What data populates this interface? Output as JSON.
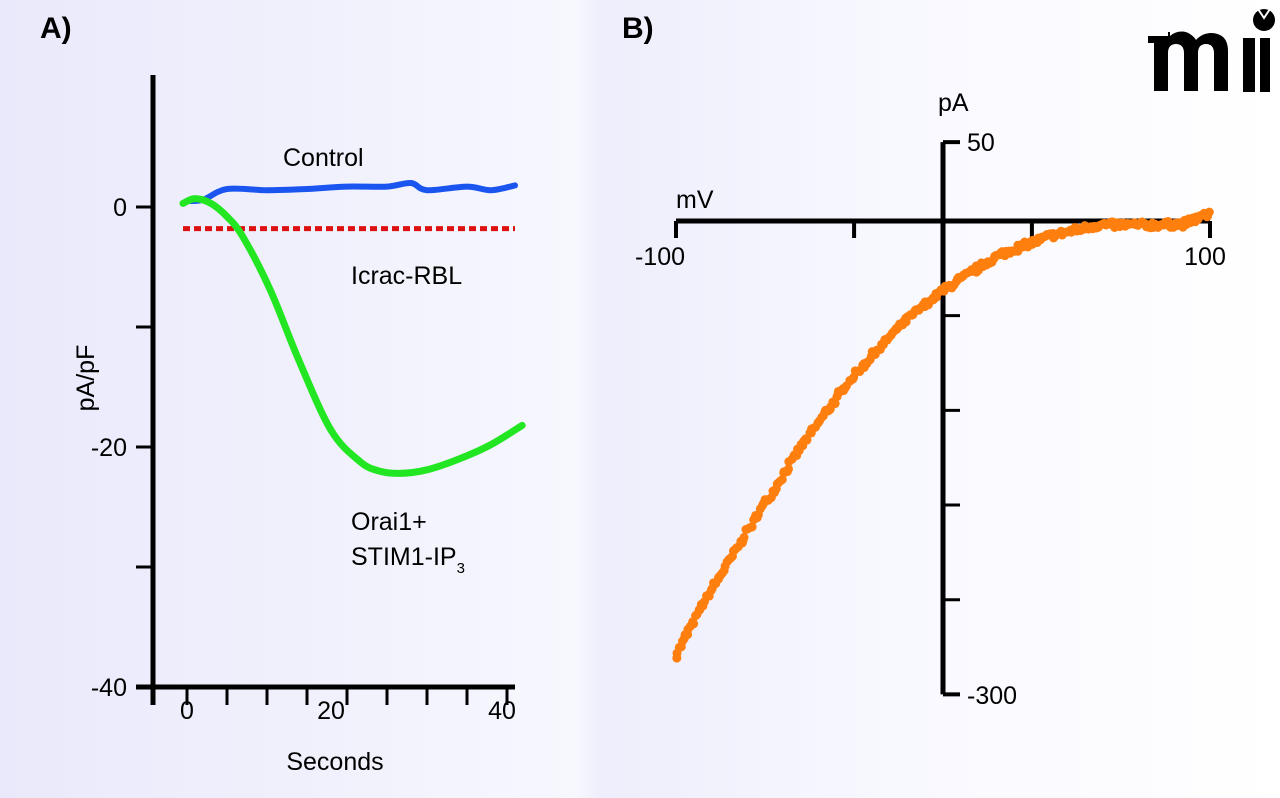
{
  "logo_text": "mi",
  "chart_data": [
    {
      "panel_label": "A)",
      "type": "line",
      "xlabel": "Seconds",
      "ylabel": "pA/pF",
      "xlim": [
        -4,
        41
      ],
      "ylim": [
        -40,
        11
      ],
      "xticks": [
        0,
        20,
        40
      ],
      "yticks": [
        0,
        -20,
        -40
      ],
      "grid": false,
      "series": [
        {
          "name": "Control",
          "color": "#1a55f0",
          "style": "solid",
          "x": [
            0,
            2,
            5,
            10,
            15,
            20,
            25,
            28,
            30,
            35,
            38,
            41
          ],
          "y": [
            0.5,
            0.6,
            1.5,
            1.4,
            1.5,
            1.7,
            1.7,
            2.0,
            1.4,
            1.7,
            1.4,
            1.8
          ]
        },
        {
          "name": "Icrac-RBL",
          "color": "#dd1111",
          "style": "dotted",
          "x": [
            -0.5,
            41
          ],
          "y": [
            -1.8,
            -1.8
          ]
        },
        {
          "name": "Orai1+ STIM1-IP3",
          "label_lines": [
            "Orai1+",
            "STIM1-IP",
            "3"
          ],
          "color": "#22e622",
          "style": "solid",
          "x": [
            -0.5,
            1,
            3,
            5,
            7,
            10.4,
            14,
            18,
            21.6,
            24,
            26.6,
            30,
            34,
            38,
            41.9
          ],
          "y": [
            0.3,
            0.7,
            0.3,
            -0.8,
            -2.5,
            -6.9,
            -12.8,
            -18.6,
            -21.2,
            -22.0,
            -22.2,
            -21.9,
            -21.0,
            -19.8,
            -18.2
          ]
        }
      ]
    },
    {
      "panel_label": "B)",
      "type": "scatter",
      "xlabel": "mV",
      "ylabel": "pA",
      "xlim": [
        -100,
        100
      ],
      "ylim": [
        -300,
        50
      ],
      "xticks": [
        -100,
        100
      ],
      "yticks": [
        50,
        -300
      ],
      "grid": false,
      "series": [
        {
          "color": "#ff7f0e",
          "x": [
            -100,
            -91,
            -72,
            -54,
            -35,
            -16,
            0,
            21,
            40,
            58,
            77,
            90,
            100
          ],
          "y": [
            -275,
            -246,
            -193,
            -145,
            -101,
            -66,
            -44,
            -21.5,
            -9.5,
            -2.5,
            -2.5,
            -2,
            5
          ]
        }
      ]
    }
  ]
}
